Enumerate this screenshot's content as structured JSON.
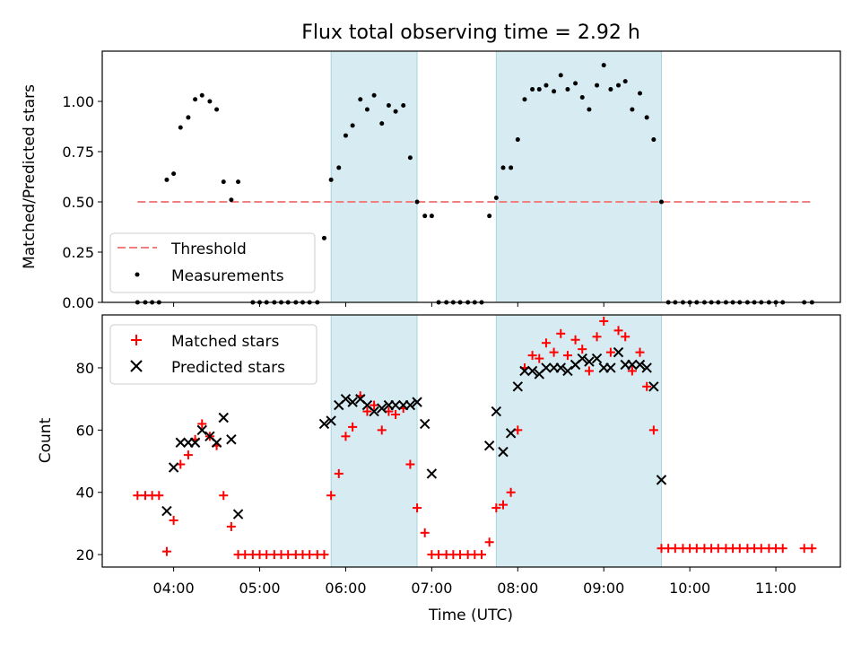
{
  "chart_data": [
    {
      "type": "scatter",
      "title": "Flux total observing time = 2.92 h",
      "xlabel": "",
      "ylabel": "Matched/Predicted stars",
      "x_unit": "hours UTC",
      "xlim": [
        3.17,
        11.75
      ],
      "ylim": [
        0,
        1.25
      ],
      "yticks": [
        "0.00",
        "0.25",
        "0.50",
        "0.75",
        "1.00"
      ],
      "ytick_values": [
        0,
        0.25,
        0.5,
        0.75,
        1.0
      ],
      "grid": false,
      "legend_position": "lower-left",
      "shaded_intervals_hours": [
        [
          5.83,
          6.83
        ],
        [
          7.75,
          9.67
        ]
      ],
      "shade_color": "#add8e6",
      "threshold": {
        "name": "Threshold",
        "y": 0.5,
        "x_range": [
          3.58,
          11.42
        ],
        "color": "#f08080",
        "style": "dashed"
      },
      "series": [
        {
          "name": "Measurements",
          "color": "#000000",
          "marker": "dot",
          "points": [
            [
              3.58,
              0
            ],
            [
              3.67,
              0
            ],
            [
              3.75,
              0
            ],
            [
              3.83,
              0
            ],
            [
              3.92,
              0.61
            ],
            [
              4.0,
              0.64
            ],
            [
              4.08,
              0.87
            ],
            [
              4.17,
              0.92
            ],
            [
              4.25,
              1.01
            ],
            [
              4.33,
              1.03
            ],
            [
              4.42,
              1.0
            ],
            [
              4.5,
              0.96
            ],
            [
              4.58,
              0.6
            ],
            [
              4.67,
              0.51
            ],
            [
              4.75,
              0.6
            ],
            [
              4.92,
              0
            ],
            [
              5.0,
              0
            ],
            [
              5.08,
              0
            ],
            [
              5.17,
              0
            ],
            [
              5.25,
              0
            ],
            [
              5.33,
              0
            ],
            [
              5.42,
              0
            ],
            [
              5.5,
              0
            ],
            [
              5.58,
              0
            ],
            [
              5.67,
              0
            ],
            [
              5.75,
              0.32
            ],
            [
              5.83,
              0.61
            ],
            [
              5.92,
              0.67
            ],
            [
              6.0,
              0.83
            ],
            [
              6.08,
              0.88
            ],
            [
              6.17,
              1.01
            ],
            [
              6.25,
              0.96
            ],
            [
              6.33,
              1.03
            ],
            [
              6.42,
              0.89
            ],
            [
              6.5,
              0.98
            ],
            [
              6.58,
              0.95
            ],
            [
              6.67,
              0.98
            ],
            [
              6.75,
              0.72
            ],
            [
              6.83,
              0.5
            ],
            [
              6.92,
              0.43
            ],
            [
              7.0,
              0.43
            ],
            [
              7.08,
              0
            ],
            [
              7.17,
              0
            ],
            [
              7.25,
              0
            ],
            [
              7.33,
              0
            ],
            [
              7.42,
              0
            ],
            [
              7.5,
              0
            ],
            [
              7.58,
              0
            ],
            [
              7.67,
              0.43
            ],
            [
              7.75,
              0.52
            ],
            [
              7.83,
              0.67
            ],
            [
              7.92,
              0.67
            ],
            [
              8.0,
              0.81
            ],
            [
              8.08,
              1.01
            ],
            [
              8.17,
              1.06
            ],
            [
              8.25,
              1.06
            ],
            [
              8.33,
              1.08
            ],
            [
              8.42,
              1.05
            ],
            [
              8.5,
              1.13
            ],
            [
              8.58,
              1.06
            ],
            [
              8.67,
              1.09
            ],
            [
              8.75,
              1.02
            ],
            [
              8.83,
              0.96
            ],
            [
              8.92,
              1.08
            ],
            [
              9.0,
              1.18
            ],
            [
              9.08,
              1.06
            ],
            [
              9.17,
              1.08
            ],
            [
              9.25,
              1.1
            ],
            [
              9.33,
              0.96
            ],
            [
              9.42,
              1.04
            ],
            [
              9.5,
              0.92
            ],
            [
              9.58,
              0.81
            ],
            [
              9.67,
              0.5
            ],
            [
              9.75,
              0
            ],
            [
              9.83,
              0
            ],
            [
              9.92,
              0
            ],
            [
              10.0,
              0
            ],
            [
              10.08,
              0
            ],
            [
              10.17,
              0
            ],
            [
              10.25,
              0
            ],
            [
              10.33,
              0
            ],
            [
              10.42,
              0
            ],
            [
              10.5,
              0
            ],
            [
              10.58,
              0
            ],
            [
              10.67,
              0
            ],
            [
              10.75,
              0
            ],
            [
              10.83,
              0
            ],
            [
              10.92,
              0
            ],
            [
              11.0,
              0
            ],
            [
              11.08,
              0
            ],
            [
              11.33,
              0
            ],
            [
              11.42,
              0
            ]
          ]
        }
      ]
    },
    {
      "type": "scatter",
      "title": "",
      "xlabel": "Time (UTC)",
      "ylabel": "Count",
      "x_unit": "hours UTC",
      "xlim": [
        3.17,
        11.75
      ],
      "ylim": [
        16,
        97
      ],
      "yticks": [
        "20",
        "40",
        "60",
        "80"
      ],
      "ytick_values": [
        20,
        40,
        60,
        80
      ],
      "xticks": [
        "04:00",
        "05:00",
        "06:00",
        "07:00",
        "08:00",
        "09:00",
        "10:00",
        "11:00"
      ],
      "xtick_values": [
        4,
        5,
        6,
        7,
        8,
        9,
        10,
        11
      ],
      "grid": false,
      "legend_position": "upper-left",
      "shaded_intervals_hours": [
        [
          5.83,
          6.83
        ],
        [
          7.75,
          9.67
        ]
      ],
      "shade_color": "#add8e6",
      "series": [
        {
          "name": "Matched stars",
          "color": "#ff0000",
          "marker": "plus",
          "points": [
            [
              3.58,
              39
            ],
            [
              3.67,
              39
            ],
            [
              3.75,
              39
            ],
            [
              3.83,
              39
            ],
            [
              3.92,
              21
            ],
            [
              4.0,
              31
            ],
            [
              4.08,
              49
            ],
            [
              4.17,
              52
            ],
            [
              4.25,
              57
            ],
            [
              4.33,
              62
            ],
            [
              4.42,
              58
            ],
            [
              4.5,
              55
            ],
            [
              4.58,
              39
            ],
            [
              4.67,
              29
            ],
            [
              4.75,
              20
            ],
            [
              4.83,
              20
            ],
            [
              4.92,
              20
            ],
            [
              5.0,
              20
            ],
            [
              5.08,
              20
            ],
            [
              5.17,
              20
            ],
            [
              5.25,
              20
            ],
            [
              5.33,
              20
            ],
            [
              5.42,
              20
            ],
            [
              5.5,
              20
            ],
            [
              5.58,
              20
            ],
            [
              5.67,
              20
            ],
            [
              5.75,
              20
            ],
            [
              5.83,
              39
            ],
            [
              5.92,
              46
            ],
            [
              6.0,
              58
            ],
            [
              6.08,
              61
            ],
            [
              6.17,
              71
            ],
            [
              6.25,
              66
            ],
            [
              6.33,
              68
            ],
            [
              6.42,
              60
            ],
            [
              6.5,
              66
            ],
            [
              6.58,
              65
            ],
            [
              6.67,
              67
            ],
            [
              6.75,
              49
            ],
            [
              6.83,
              35
            ],
            [
              6.92,
              27
            ],
            [
              7.0,
              20
            ],
            [
              7.08,
              20
            ],
            [
              7.17,
              20
            ],
            [
              7.25,
              20
            ],
            [
              7.33,
              20
            ],
            [
              7.42,
              20
            ],
            [
              7.5,
              20
            ],
            [
              7.58,
              20
            ],
            [
              7.67,
              24
            ],
            [
              7.75,
              35
            ],
            [
              7.83,
              36
            ],
            [
              7.92,
              40
            ],
            [
              8.0,
              60
            ],
            [
              8.08,
              80
            ],
            [
              8.17,
              84
            ],
            [
              8.25,
              83
            ],
            [
              8.33,
              88
            ],
            [
              8.42,
              85
            ],
            [
              8.5,
              91
            ],
            [
              8.58,
              84
            ],
            [
              8.67,
              89
            ],
            [
              8.75,
              86
            ],
            [
              8.83,
              79
            ],
            [
              8.92,
              90
            ],
            [
              9.0,
              95
            ],
            [
              9.08,
              85
            ],
            [
              9.17,
              92
            ],
            [
              9.25,
              90
            ],
            [
              9.33,
              79
            ],
            [
              9.42,
              85
            ],
            [
              9.5,
              74
            ],
            [
              9.58,
              60
            ],
            [
              9.67,
              22
            ],
            [
              9.75,
              22
            ],
            [
              9.83,
              22
            ],
            [
              9.92,
              22
            ],
            [
              10.0,
              22
            ],
            [
              10.08,
              22
            ],
            [
              10.17,
              22
            ],
            [
              10.25,
              22
            ],
            [
              10.33,
              22
            ],
            [
              10.42,
              22
            ],
            [
              10.5,
              22
            ],
            [
              10.58,
              22
            ],
            [
              10.67,
              22
            ],
            [
              10.75,
              22
            ],
            [
              10.83,
              22
            ],
            [
              10.92,
              22
            ],
            [
              11.0,
              22
            ],
            [
              11.08,
              22
            ],
            [
              11.33,
              22
            ],
            [
              11.42,
              22
            ]
          ]
        },
        {
          "name": "Predicted stars",
          "color": "#000000",
          "marker": "x",
          "points": [
            [
              3.92,
              34
            ],
            [
              4.0,
              48
            ],
            [
              4.08,
              56
            ],
            [
              4.17,
              56
            ],
            [
              4.25,
              56
            ],
            [
              4.33,
              60
            ],
            [
              4.42,
              58
            ],
            [
              4.5,
              56
            ],
            [
              4.58,
              64
            ],
            [
              4.67,
              57
            ],
            [
              4.75,
              33
            ],
            [
              5.75,
              62
            ],
            [
              5.83,
              63
            ],
            [
              5.92,
              68
            ],
            [
              6.0,
              70
            ],
            [
              6.08,
              69
            ],
            [
              6.17,
              70
            ],
            [
              6.25,
              68
            ],
            [
              6.33,
              66
            ],
            [
              6.42,
              67
            ],
            [
              6.5,
              68
            ],
            [
              6.58,
              68
            ],
            [
              6.67,
              68
            ],
            [
              6.75,
              68
            ],
            [
              6.83,
              69
            ],
            [
              6.92,
              62
            ],
            [
              7.0,
              46
            ],
            [
              7.67,
              55
            ],
            [
              7.75,
              66
            ],
            [
              7.83,
              53
            ],
            [
              7.92,
              59
            ],
            [
              8.0,
              74
            ],
            [
              8.08,
              79
            ],
            [
              8.17,
              79
            ],
            [
              8.25,
              78
            ],
            [
              8.33,
              80
            ],
            [
              8.42,
              80
            ],
            [
              8.5,
              80
            ],
            [
              8.58,
              79
            ],
            [
              8.67,
              81
            ],
            [
              8.75,
              83
            ],
            [
              8.83,
              82
            ],
            [
              8.92,
              83
            ],
            [
              9.0,
              80
            ],
            [
              9.08,
              80
            ],
            [
              9.17,
              85
            ],
            [
              9.25,
              81
            ],
            [
              9.33,
              81
            ],
            [
              9.42,
              81
            ],
            [
              9.5,
              80
            ],
            [
              9.58,
              74
            ],
            [
              9.67,
              44
            ]
          ]
        }
      ]
    }
  ]
}
